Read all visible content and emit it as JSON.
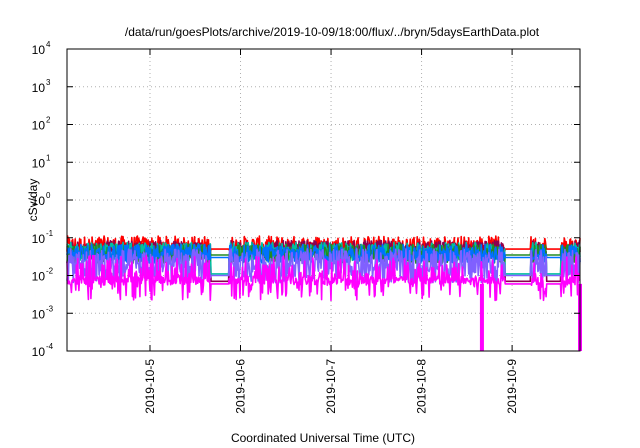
{
  "chart_data": {
    "type": "line",
    "title": "/data/run/goesPlots/archive/2019-10-09/18:00/flux/../bryn/5daysEarthData.plot",
    "xlabel": "Coordinated Universal Time (UTC)",
    "ylabel": "cSv/day",
    "yscale": "log",
    "ylim": [
      0.0001,
      10000
    ],
    "y_ticks": [
      {
        "base": "10",
        "exp": "-4",
        "value": 0.0001
      },
      {
        "base": "10",
        "exp": "-3",
        "value": 0.001
      },
      {
        "base": "10",
        "exp": "-2",
        "value": 0.01
      },
      {
        "base": "10",
        "exp": "-1",
        "value": 0.1
      },
      {
        "base": "10",
        "exp": "0",
        "value": 1
      },
      {
        "base": "10",
        "exp": "1",
        "value": 10
      },
      {
        "base": "10",
        "exp": "2",
        "value": 100
      },
      {
        "base": "10",
        "exp": "3",
        "value": 1000
      },
      {
        "base": "10",
        "exp": "4",
        "value": 10000
      }
    ],
    "xlim": [
      "2019-10-04T02:00",
      "2019-10-09T18:00"
    ],
    "x_ticks": [
      "2019-10-5",
      "2019-10-6",
      "2019-10-7",
      "2019-10-8",
      "2019-10-9"
    ],
    "grid": true,
    "gaps": [
      {
        "start": "2019-10-05T16:00",
        "end": "2019-10-05T21:00"
      },
      {
        "start": "2019-10-08T22:00",
        "end": "2019-10-09T05:00"
      },
      {
        "start": "2019-10-09T09:00",
        "end": "2019-10-09T13:00"
      }
    ],
    "dropouts": [
      {
        "time": "2019-10-08T16:00",
        "value": 0.0001
      },
      {
        "time": "2019-10-09T18:00",
        "value": 0.0001
      }
    ],
    "series": [
      {
        "color": "#ff0000",
        "base": 0.06,
        "spread": 0.6,
        "flat": 0.05
      },
      {
        "color": "#8b0050",
        "base": 0.05,
        "spread": 0.5,
        "flat": 0.007
      },
      {
        "color": "#00c0a0",
        "base": 0.045,
        "spread": 0.5,
        "flat": 0.011
      },
      {
        "color": "#228b22",
        "base": 0.04,
        "spread": 0.5,
        "flat": 0.035
      },
      {
        "color": "#0070ff",
        "base": 0.04,
        "spread": 0.5,
        "flat": 0.03
      },
      {
        "color": "#8060ff",
        "base": 0.02,
        "spread": 0.9,
        "flat": 0.01
      },
      {
        "color": "#ff00ff",
        "base": 0.01,
        "spread": 1.2,
        "flat": 0.006
      }
    ]
  }
}
